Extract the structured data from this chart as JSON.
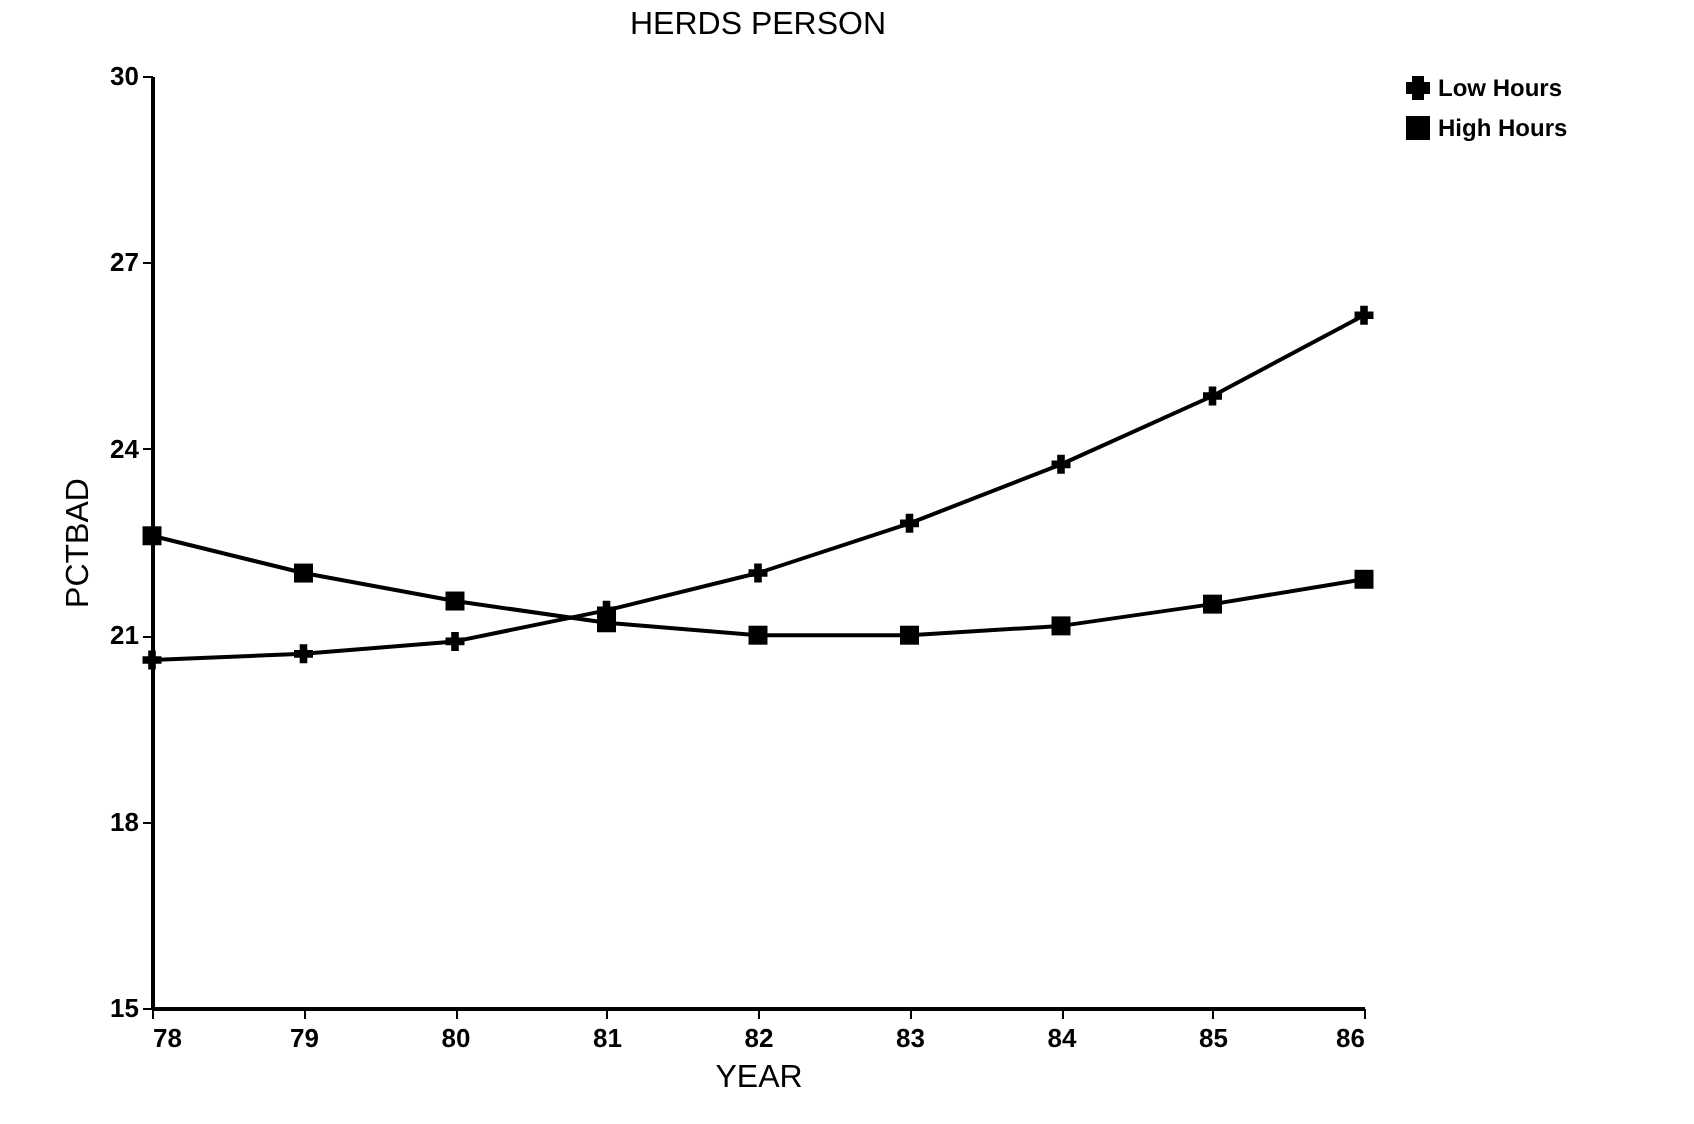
{
  "chart_data": {
    "type": "line",
    "title": "HERDS PERSON",
    "xlabel": "YEAR",
    "ylabel": "PCTBAD",
    "x": [
      78,
      79,
      80,
      81,
      82,
      83,
      84,
      85,
      86
    ],
    "xlim": [
      78,
      86
    ],
    "xticks": [
      78,
      79,
      80,
      81,
      82,
      83,
      84,
      85,
      86
    ],
    "ylim": [
      15,
      30
    ],
    "yticks": [
      15,
      18,
      21,
      24,
      27,
      30
    ],
    "legend": "top right",
    "grid": false,
    "line_style": "solid",
    "series": [
      {
        "name": "Low Hours",
        "color": "#000000",
        "marker": "cross",
        "values": [
          20.6,
          20.7,
          20.9,
          21.4,
          22.0,
          22.8,
          23.75,
          24.85,
          26.15
        ]
      },
      {
        "name": "High Hours",
        "color": "#000000",
        "marker": "square",
        "values": [
          22.6,
          22.0,
          21.55,
          21.2,
          21.0,
          21.0,
          21.15,
          21.5,
          21.9
        ]
      }
    ]
  }
}
